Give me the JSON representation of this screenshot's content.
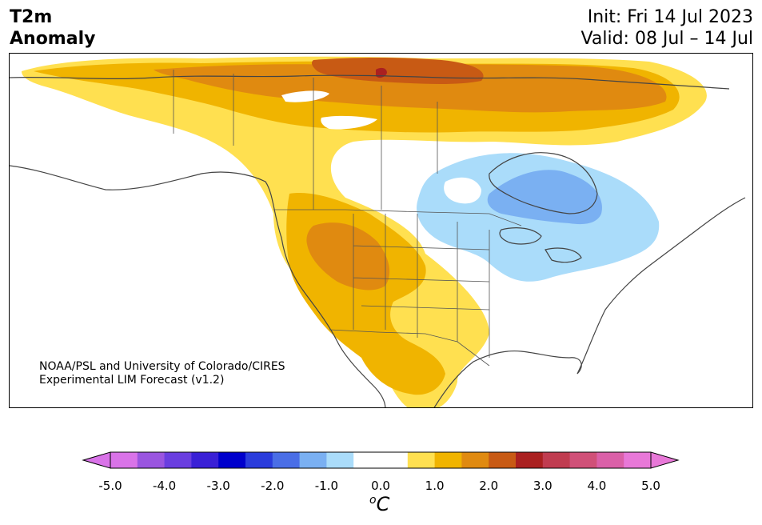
{
  "header": {
    "title_line1": "T2m",
    "title_line2": "Anomaly",
    "init_text": "Init: Fri 14 Jul 2023",
    "valid_text": "Valid: 08 Jul – 14 Jul"
  },
  "credit": {
    "line1": "NOAA/PSL and University of Colorado/CIRES",
    "line2": "Experimental LIM Forecast (v1.2)"
  },
  "colorbar": {
    "colors": [
      "#d973e8",
      "#9a55e0",
      "#6a3ee0",
      "#3a20d6",
      "#0000cc",
      "#2a3cdc",
      "#4a6ee6",
      "#7ab0f2",
      "#aadcfa",
      "#ffffff",
      "#ffffff",
      "#ffe050",
      "#f0b400",
      "#e08a10",
      "#c85a14",
      "#aa2020",
      "#c03c50",
      "#d05078",
      "#da60a8",
      "#e878d8"
    ],
    "min_color": "#d973e8",
    "max_color": "#e878d8",
    "tick_labels": [
      "-5.0",
      "-4.0",
      "-3.0",
      "-2.0",
      "-1.0",
      "0.0",
      "1.0",
      "2.0",
      "3.0",
      "4.0",
      "5.0"
    ],
    "unit_super": "o",
    "unit_main": "C"
  },
  "legend_colors": {
    "light_warm": "#ffe050",
    "warm": "#f0b400",
    "warmer": "#e08a10",
    "hot": "#c85a14",
    "very_hot": "#aa2020",
    "light_cool": "#aadcfa",
    "cool": "#7ab0f2"
  }
}
